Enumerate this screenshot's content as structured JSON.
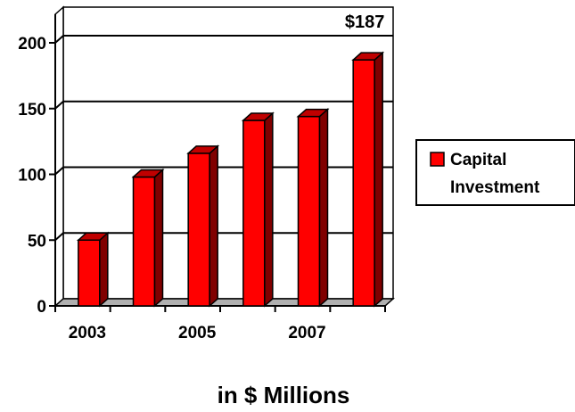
{
  "chart_data": {
    "type": "bar",
    "categories": [
      "2003",
      "2004",
      "2005",
      "2006",
      "2007",
      "2008"
    ],
    "x_tick_labels": [
      "2003",
      "",
      "2005",
      "",
      "2007",
      ""
    ],
    "series": [
      {
        "name": "Capital Investment",
        "values": [
          50,
          98,
          116,
          141,
          144,
          187
        ],
        "color": "#ff0000"
      }
    ],
    "data_labels": [
      {
        "category": "2008",
        "text": "$187"
      }
    ],
    "ylim": [
      0,
      200
    ],
    "y_ticks": [
      0,
      50,
      100,
      150,
      200
    ],
    "grid": true,
    "legend": {
      "position": "right",
      "entries": [
        "Capital Investment"
      ]
    },
    "caption": "in $ Millions",
    "title": "",
    "xlabel": "",
    "ylabel": ""
  }
}
